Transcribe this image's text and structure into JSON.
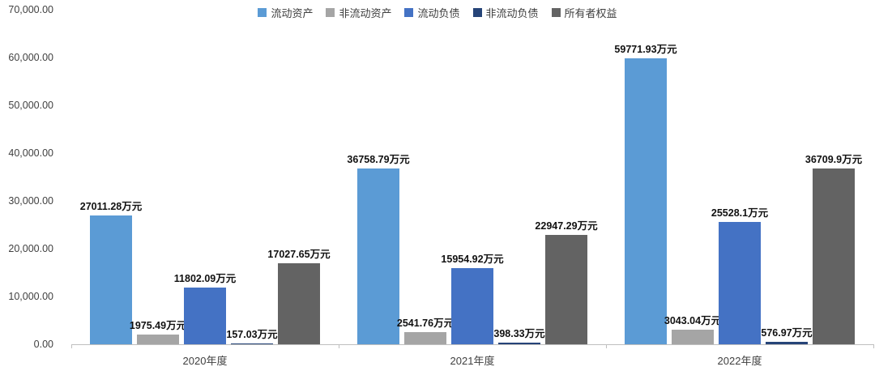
{
  "chart_data": {
    "type": "bar",
    "title": "",
    "xlabel": "",
    "ylabel": "",
    "ylim": [
      0,
      70000
    ],
    "grid": false,
    "legend_position": "top",
    "unit_suffix": "万元",
    "y_ticks": [
      "70,000.00",
      "60,000.00",
      "50,000.00",
      "40,000.00",
      "30,000.00",
      "20,000.00",
      "10,000.00",
      "0.00"
    ],
    "categories": [
      "2020年度",
      "2021年度",
      "2022年度"
    ],
    "series": [
      {
        "name": "流动资产",
        "color": "#5B9BD5",
        "values": [
          27011.28,
          36758.79,
          59771.93
        ],
        "labels": [
          "27011.28万元",
          "36758.79万元",
          "59771.93万元"
        ]
      },
      {
        "name": "非流动资产",
        "color": "#A5A5A5",
        "values": [
          1975.49,
          2541.76,
          3043.04
        ],
        "labels": [
          "1975.49万元",
          "2541.76万元",
          "3043.04万元"
        ]
      },
      {
        "name": "流动负债",
        "color": "#4472C4",
        "values": [
          11802.09,
          15954.92,
          25528.1
        ],
        "labels": [
          "11802.09万元",
          "15954.92万元",
          "25528.1万元"
        ]
      },
      {
        "name": "非流动负债",
        "color": "#264478",
        "values": [
          157.03,
          398.33,
          576.97
        ],
        "labels": [
          "157.03万元",
          "398.33万元",
          "576.97万元"
        ]
      },
      {
        "name": "所有者权益",
        "color": "#636363",
        "values": [
          17027.65,
          22947.29,
          36709.9
        ],
        "labels": [
          "17027.65万元",
          "22947.29万元",
          "36709.9万元"
        ]
      }
    ]
  }
}
